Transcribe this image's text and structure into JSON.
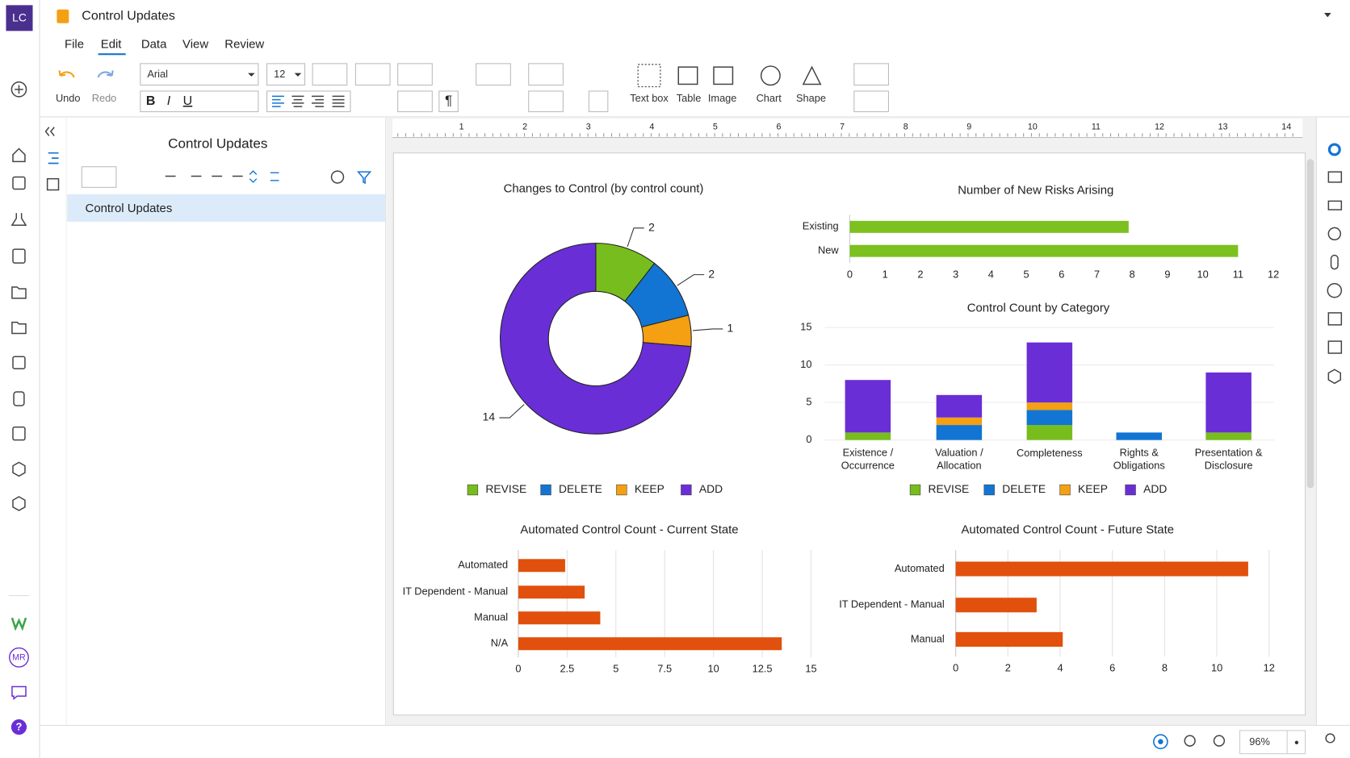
{
  "app": {
    "logo": "LC",
    "title": "Control Updates",
    "menu": [
      "File",
      "Edit",
      "Data",
      "View",
      "Review"
    ],
    "user_badge": "MR",
    "zoom": "96%"
  },
  "toolbar": {
    "undo": "Undo",
    "redo": "Redo",
    "font": "Arial",
    "font_size": 12,
    "insert": [
      "Text box",
      "Table",
      "Image",
      "Chart",
      "Shape"
    ]
  },
  "sidebar": {
    "title": "Control Updates",
    "items": [
      "Control Updates"
    ]
  },
  "ruler": [
    1,
    2,
    3,
    4,
    5,
    6,
    7,
    8,
    9,
    10,
    11,
    12,
    13,
    14
  ],
  "chart_data": [
    {
      "type": "pie",
      "donut": true,
      "title": "Changes to Control (by control count)",
      "categories": [
        "REVISE",
        "DELETE",
        "KEEP",
        "ADD"
      ],
      "values": [
        2,
        2,
        1,
        14
      ],
      "colors": [
        "#77bd1d",
        "#1275d3",
        "#f4a012",
        "#6a2ed6"
      ],
      "legend": "bottom"
    },
    {
      "type": "bar",
      "orientation": "horizontal",
      "title": "Number of New Risks Arising",
      "categories": [
        "Existing",
        "New"
      ],
      "values": [
        7.9,
        11
      ],
      "color": "#7cc11f",
      "xlim": [
        0,
        12
      ],
      "xticks": [
        0,
        1,
        2,
        3,
        4,
        5,
        6,
        7,
        8,
        9,
        10,
        11,
        12
      ],
      "grid": false
    },
    {
      "type": "bar",
      "stacked": true,
      "title": "Control Count by Category",
      "categories": [
        "Existence / Occurrence",
        "Valuation / Allocation",
        "Completeness",
        "Rights & Obligations",
        "Presentation & Disclosure"
      ],
      "series": [
        {
          "name": "REVISE",
          "color": "#77bd1d",
          "values": [
            1,
            0,
            2,
            0,
            1
          ]
        },
        {
          "name": "DELETE",
          "color": "#1275d3",
          "values": [
            0,
            2,
            2,
            1,
            0
          ]
        },
        {
          "name": "KEEP",
          "color": "#f4a012",
          "values": [
            0,
            1,
            1,
            0,
            0
          ]
        },
        {
          "name": "ADD",
          "color": "#6a2ed6",
          "values": [
            7,
            3,
            8,
            0,
            8
          ]
        }
      ],
      "ylim": [
        0,
        15
      ],
      "yticks": [
        0,
        5,
        10,
        15
      ],
      "grid": true,
      "legend": "bottom"
    },
    {
      "type": "bar",
      "orientation": "horizontal",
      "title": "Automated Control Count - Current State",
      "categories": [
        "Automated",
        "IT Dependent - Manual",
        "Manual",
        "N/A"
      ],
      "values": [
        2.4,
        3.4,
        4.2,
        13.5
      ],
      "color": "#e1500c",
      "xlim": [
        0,
        15
      ],
      "xticks": [
        0,
        2.5,
        5,
        7.5,
        10,
        12.5,
        15
      ],
      "grid": true
    },
    {
      "type": "bar",
      "orientation": "horizontal",
      "title": "Automated Control Count - Future State",
      "categories": [
        "Automated",
        "IT Dependent - Manual",
        "Manual"
      ],
      "values": [
        11.2,
        3.1,
        4.1
      ],
      "color": "#e1500c",
      "xlim": [
        0,
        12
      ],
      "xticks": [
        0,
        2,
        4,
        6,
        8,
        10,
        12
      ],
      "grid": true
    }
  ]
}
